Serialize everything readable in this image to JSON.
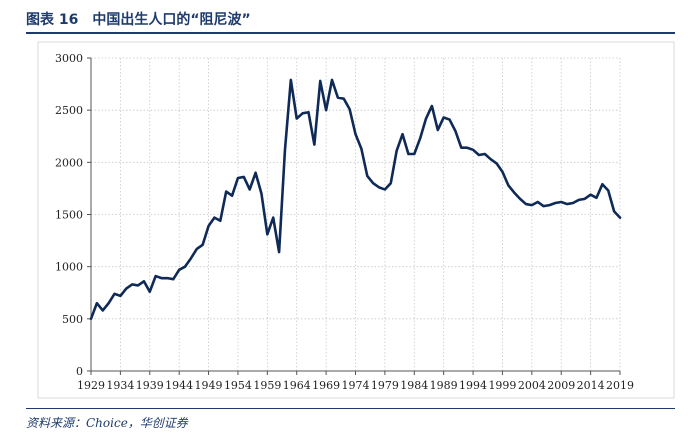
{
  "figure": {
    "title": "图表 16　中国出生人口的“阻尼波”",
    "source": "资料来源：Choice，华创证券"
  },
  "colors": {
    "line": "#0f2a57",
    "title": "#1f3b6e"
  },
  "chart_data": {
    "type": "line",
    "title": "",
    "xlabel": "",
    "ylabel": "",
    "grid": true,
    "legend": "none",
    "ylim": [
      0,
      3000
    ],
    "yticks": [
      "0",
      "500",
      "1000",
      "1500",
      "2000",
      "2500",
      "3000"
    ],
    "xticks": [
      "1929",
      "1934",
      "1939",
      "1944",
      "1949",
      "1954",
      "1959",
      "1964",
      "1969",
      "1974",
      "1979",
      "1984",
      "1989",
      "1994",
      "1999",
      "2004",
      "2009",
      "2014",
      "2019"
    ],
    "x": [
      1929,
      1930,
      1931,
      1932,
      1933,
      1934,
      1935,
      1936,
      1937,
      1938,
      1939,
      1940,
      1941,
      1942,
      1943,
      1944,
      1945,
      1946,
      1947,
      1948,
      1949,
      1950,
      1951,
      1952,
      1953,
      1954,
      1955,
      1956,
      1957,
      1958,
      1959,
      1960,
      1961,
      1962,
      1963,
      1964,
      1965,
      1966,
      1967,
      1968,
      1969,
      1970,
      1971,
      1972,
      1973,
      1974,
      1975,
      1976,
      1977,
      1978,
      1979,
      1980,
      1981,
      1982,
      1983,
      1984,
      1985,
      1986,
      1987,
      1988,
      1989,
      1990,
      1991,
      1992,
      1993,
      1994,
      1995,
      1996,
      1997,
      1998,
      1999,
      2000,
      2001,
      2002,
      2003,
      2004,
      2005,
      2006,
      2007,
      2008,
      2009,
      2010,
      2011,
      2012,
      2013,
      2014,
      2015,
      2016,
      2017,
      2018,
      2019
    ],
    "series": [
      {
        "values": [
          500,
          650,
          580,
          650,
          740,
          720,
          790,
          830,
          820,
          860,
          760,
          910,
          890,
          890,
          880,
          970,
          1000,
          1080,
          1170,
          1210,
          1390,
          1470,
          1440,
          1720,
          1680,
          1850,
          1860,
          1740,
          1900,
          1700,
          1310,
          1470,
          1140,
          2120,
          2790,
          2420,
          2470,
          2480,
          2170,
          2780,
          2500,
          2790,
          2620,
          2610,
          2510,
          2270,
          2130,
          1870,
          1800,
          1760,
          1740,
          1800,
          2110,
          2270,
          2080,
          2080,
          2230,
          2420,
          2540,
          2310,
          2430,
          2410,
          2300,
          2140,
          2140,
          2120,
          2070,
          2080,
          2030,
          1990,
          1910,
          1780,
          1710,
          1650,
          1600,
          1590,
          1620,
          1580,
          1590,
          1610,
          1620,
          1600,
          1610,
          1640,
          1650,
          1690,
          1660,
          1790,
          1730,
          1530,
          1470
        ]
      }
    ]
  }
}
